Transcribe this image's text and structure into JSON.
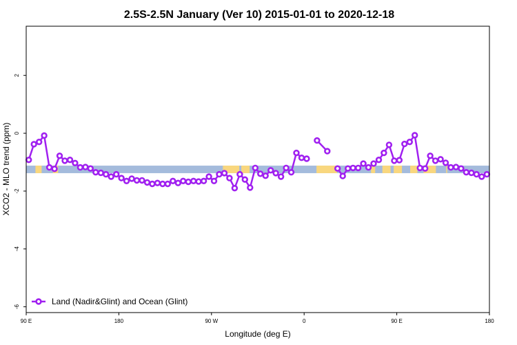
{
  "chart_data": {
    "type": "line",
    "title": "2.5S-2.5N January (Ver 10)   2015-01-01 to 2020-12-18",
    "xlabel": "Longitude (deg E)",
    "ylabel": "XCO2 - MLO trend (ppm)",
    "xlim": [
      90,
      540
    ],
    "ylim": [
      -6.2,
      3.7
    ],
    "x_ticks": [
      {
        "value": 90,
        "label": "90 E"
      },
      {
        "value": 180,
        "label": "180"
      },
      {
        "value": 270,
        "label": "90 W"
      },
      {
        "value": 360,
        "label": "0"
      },
      {
        "value": 450,
        "label": "90 E"
      },
      {
        "value": 540,
        "label": "180"
      }
    ],
    "y_ticks": [
      {
        "value": -6,
        "label": "-6"
      },
      {
        "value": -4,
        "label": "-4"
      },
      {
        "value": -2,
        "label": "-2"
      },
      {
        "value": 0,
        "label": "0"
      },
      {
        "value": 2,
        "label": "2"
      }
    ],
    "surface_band": {
      "y_range": [
        -1.38,
        -1.12
      ],
      "ocean_color": "#a4bbdc",
      "land_color": "#f9d77e",
      "land_segments": [
        [
          99,
          105
        ],
        [
          116,
          121
        ],
        [
          281,
          282
        ],
        [
          282,
          297
        ],
        [
          299,
          307
        ],
        [
          372,
          392
        ],
        [
          425,
          429
        ],
        [
          436,
          444
        ],
        [
          447,
          452
        ],
        [
          451,
          455
        ],
        [
          463,
          470
        ],
        [
          476,
          488
        ],
        [
          498,
          499
        ]
      ]
    },
    "series": [
      {
        "name": "Land (Nadir&Glint) and Ocean (Glint)",
        "color": "#a020f0",
        "points": [
          [
            92.5,
            -0.92
          ],
          [
            97.5,
            -0.38
          ],
          [
            102.5,
            -0.3
          ],
          [
            107.5,
            -0.08
          ],
          [
            112.5,
            -1.18
          ],
          [
            117.5,
            -1.23
          ],
          [
            122.5,
            -0.78
          ],
          [
            127.5,
            -0.95
          ],
          [
            132.5,
            -0.92
          ],
          [
            137.5,
            -1.03
          ],
          [
            142.5,
            -1.18
          ],
          [
            147.5,
            -1.17
          ],
          [
            152.5,
            -1.22
          ],
          [
            157.5,
            -1.35
          ],
          [
            162.5,
            -1.37
          ],
          [
            167.5,
            -1.42
          ],
          [
            172.5,
            -1.5
          ],
          [
            177.5,
            -1.42
          ],
          [
            182.5,
            -1.55
          ],
          [
            187.5,
            -1.65
          ],
          [
            192.5,
            -1.57
          ],
          [
            197.5,
            -1.63
          ],
          [
            202.5,
            -1.63
          ],
          [
            207.5,
            -1.7
          ],
          [
            212.5,
            -1.75
          ],
          [
            217.5,
            -1.72
          ],
          [
            222.5,
            -1.75
          ],
          [
            227.5,
            -1.75
          ],
          [
            232.5,
            -1.65
          ],
          [
            237.5,
            -1.72
          ],
          [
            242.5,
            -1.65
          ],
          [
            247.5,
            -1.68
          ],
          [
            252.5,
            -1.65
          ],
          [
            257.5,
            -1.67
          ],
          [
            262.5,
            -1.65
          ],
          [
            267.5,
            -1.5
          ],
          [
            272.5,
            -1.65
          ],
          [
            277.5,
            -1.42
          ],
          [
            282.5,
            -1.38
          ],
          [
            287.5,
            -1.55
          ],
          [
            292.5,
            -1.9
          ],
          [
            297.5,
            -1.42
          ],
          [
            302.5,
            -1.6
          ],
          [
            307.5,
            -1.88
          ],
          [
            312.5,
            -1.2
          ],
          [
            317.5,
            -1.4
          ],
          [
            322.5,
            -1.47
          ],
          [
            327.5,
            -1.28
          ],
          [
            332.5,
            -1.38
          ],
          [
            337.5,
            -1.5
          ],
          [
            342.5,
            -1.2
          ],
          [
            347.5,
            -1.35
          ],
          [
            352.5,
            -0.68
          ],
          [
            357.5,
            -0.85
          ],
          [
            362.5,
            -0.88
          ],
          [
            null,
            null
          ],
          [
            372.5,
            -0.25
          ],
          [
            382.5,
            -0.62
          ],
          [
            null,
            null
          ],
          [
            392.5,
            -1.22
          ],
          [
            397.5,
            -1.48
          ],
          [
            402.5,
            -1.22
          ],
          [
            407.5,
            -1.2
          ],
          [
            412.5,
            -1.2
          ],
          [
            417.5,
            -1.05
          ],
          [
            422.5,
            -1.18
          ],
          [
            427.5,
            -1.05
          ],
          [
            432.5,
            -0.92
          ],
          [
            437.5,
            -0.68
          ],
          [
            442.5,
            -0.4
          ],
          [
            447.5,
            -0.95
          ],
          [
            452.5,
            -0.93
          ],
          [
            457.5,
            -0.37
          ],
          [
            462.5,
            -0.3
          ],
          [
            467.5,
            -0.07
          ],
          [
            472.5,
            -1.2
          ],
          [
            477.5,
            -1.22
          ],
          [
            482.5,
            -0.78
          ],
          [
            487.5,
            -0.95
          ],
          [
            492.5,
            -0.9
          ],
          [
            497.5,
            -1.02
          ],
          [
            502.5,
            -1.18
          ],
          [
            507.5,
            -1.17
          ],
          [
            512.5,
            -1.22
          ],
          [
            517.5,
            -1.35
          ],
          [
            522.5,
            -1.37
          ],
          [
            527.5,
            -1.42
          ],
          [
            532.5,
            -1.5
          ],
          [
            537.5,
            -1.42
          ]
        ]
      }
    ],
    "legend": {
      "position": "bottom-left"
    },
    "grid": false
  }
}
